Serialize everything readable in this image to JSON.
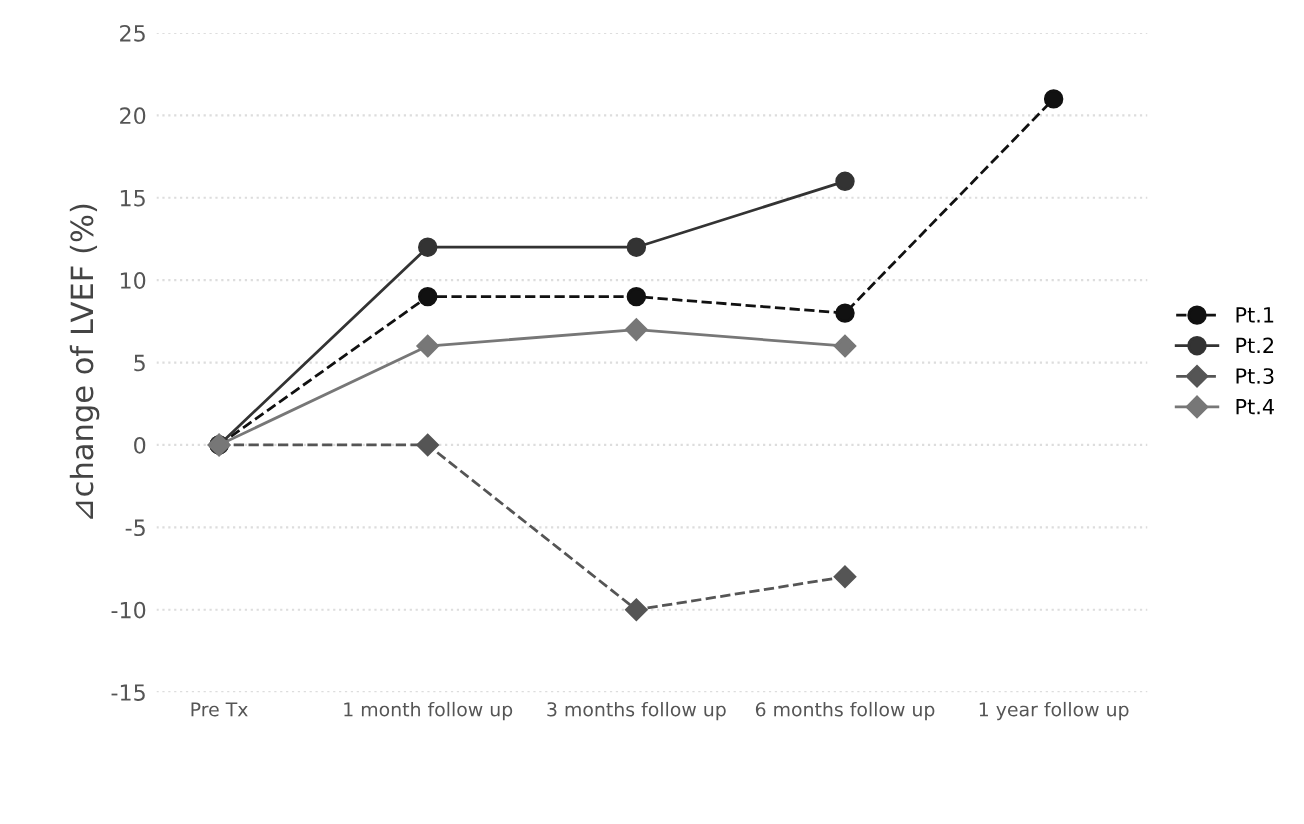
{
  "chart_data": {
    "type": "line",
    "ylabel": "⊿change of LVEF (%)",
    "categories": [
      "Pre Tx",
      "1 month follow up",
      "3 months follow up",
      "6 months follow up",
      "1 year follow up"
    ],
    "series": [
      {
        "name": "Pt.1",
        "color": "#111111",
        "values": [
          0,
          9,
          9,
          8,
          21
        ],
        "marker": "circle",
        "line_style": "dashed"
      },
      {
        "name": "Pt.2",
        "color": "#333333",
        "values": [
          0,
          12,
          12,
          16,
          null
        ],
        "marker": "circle",
        "line_style": "solid"
      },
      {
        "name": "Pt.3",
        "color": "#555555",
        "values": [
          0,
          0,
          -10,
          -8,
          null
        ],
        "marker": "diamond",
        "line_style": "dashed"
      },
      {
        "name": "Pt.4",
        "color": "#777777",
        "values": [
          0,
          6,
          7,
          6,
          null
        ],
        "marker": "diamond",
        "line_style": "solid"
      }
    ],
    "ylim": [
      -15,
      25
    ],
    "yticks": [
      -15,
      -10,
      -5,
      0,
      5,
      10,
      15,
      20,
      25
    ],
    "grid": "y",
    "legend": "right"
  }
}
